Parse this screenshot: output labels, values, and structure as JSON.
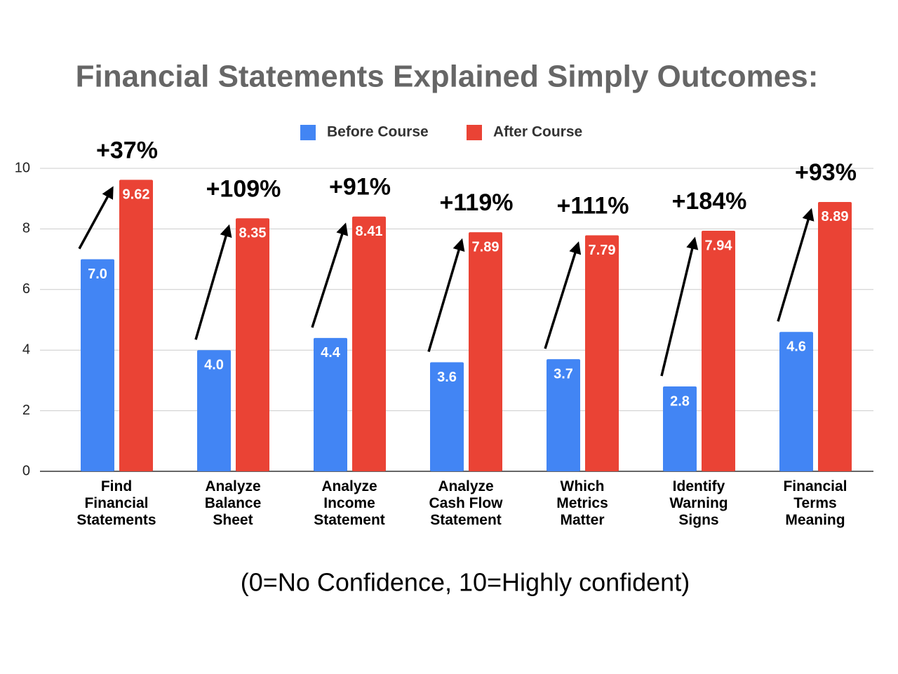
{
  "chart_data": {
    "type": "bar",
    "title": "Financial Statements Explained Simply Outcomes:",
    "note": "(0=No Confidence, 10=Highly confident)",
    "categories": [
      "Find\nFinancial\nStatements",
      "Analyze\nBalance\nSheet",
      "Analyze\nIncome\nStatement",
      "Analyze\nCash Flow\nStatement",
      "Which\nMetrics\nMatter",
      "Identify\nWarning\nSigns",
      "Financial\nTerms\nMeaning"
    ],
    "series": [
      {
        "name": "Before Course",
        "color": "#4285f4",
        "values": [
          7.0,
          4.0,
          4.4,
          3.6,
          3.7,
          2.8,
          4.6
        ],
        "value_labels": [
          "7.0",
          "4.0",
          "4.4",
          "3.6",
          "3.7",
          "2.8",
          "4.6"
        ]
      },
      {
        "name": "After Course",
        "color": "#ea4335",
        "values": [
          9.62,
          8.35,
          8.41,
          7.89,
          7.79,
          7.94,
          8.89
        ]
      }
    ],
    "annotations": [
      "+37%",
      "+109%",
      "+91%",
      "+119%",
      "+111%",
      "+184%",
      "+93%"
    ],
    "ylim": [
      0,
      10
    ],
    "yticks": [
      0,
      2,
      4,
      6,
      8,
      10
    ],
    "grid": true
  }
}
